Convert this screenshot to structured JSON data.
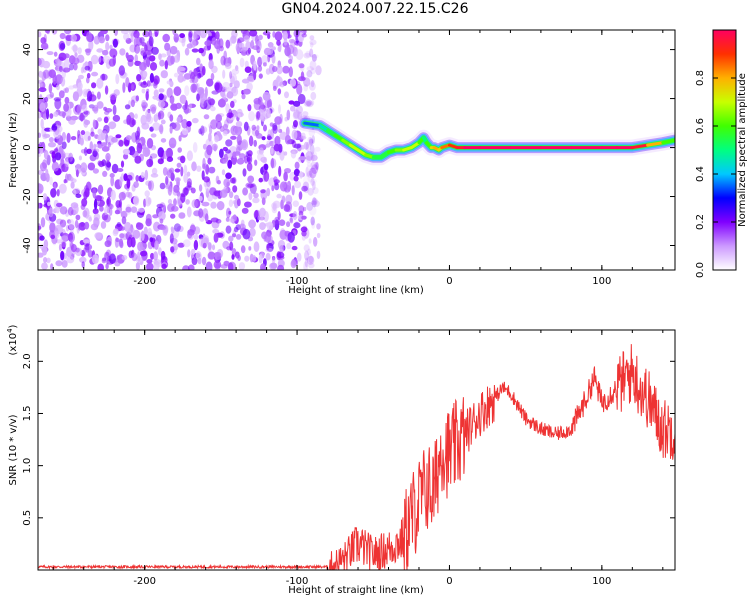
{
  "title": "GN04.2024.007.22.15.C26",
  "chart_data": [
    {
      "type": "heatmap",
      "title": "GN04.2024.007.22.15.C26",
      "xlabel": "Height of straight line (km)",
      "ylabel": "Frequency (Hz)",
      "xlim": [
        -270,
        148
      ],
      "ylim": [
        -50,
        48
      ],
      "x_ticks": [
        -200,
        -100,
        0,
        100
      ],
      "y_ticks": [
        -40,
        -20,
        0,
        20,
        40
      ],
      "x_tick_labels": [
        "-200",
        "-100",
        "0",
        "100"
      ],
      "y_tick_labels": [
        "-40",
        "-20",
        "0",
        "20",
        "40"
      ],
      "colorbar": {
        "label": "Normalized spectral amplitude",
        "range": [
          0.0,
          1.0
        ],
        "ticks": [
          0.0,
          0.2,
          0.4,
          0.6,
          0.8
        ],
        "tick_labels": [
          "0.0",
          "0.2",
          "0.4",
          "0.6",
          "0.8"
        ],
        "colormap": [
          "#ffffff",
          "#cc99ff",
          "#8000ff",
          "#0000ff",
          "#00c8ff",
          "#00ff80",
          "#40ff00",
          "#c8ff00",
          "#ffb000",
          "#ff3000",
          "#ff0060"
        ]
      },
      "noise_region_x": [
        -270,
        -95
      ],
      "ridge_series": {
        "name": "",
        "x": [
          -95,
          -85,
          -80,
          -75,
          -70,
          -65,
          -60,
          -55,
          -50,
          -45,
          -40,
          -35,
          -30,
          -25,
          -20,
          -17,
          -15,
          -12,
          -10,
          -7,
          -5,
          0,
          5,
          10,
          20,
          40,
          60,
          80,
          100,
          110,
          120,
          130,
          140,
          148
        ],
        "y": [
          10,
          9,
          7,
          5,
          3,
          1,
          -1,
          -3,
          -4,
          -4,
          -2,
          -1,
          -1,
          0,
          2,
          4,
          2,
          0,
          0,
          -1,
          0,
          1,
          0,
          0,
          0,
          0,
          0,
          0,
          0,
          0,
          0,
          1,
          2,
          3
        ],
        "amplitude": [
          0.35,
          0.45,
          0.55,
          0.6,
          0.65,
          0.7,
          0.7,
          0.65,
          0.55,
          0.55,
          0.6,
          0.65,
          0.7,
          0.7,
          0.6,
          0.5,
          0.6,
          0.75,
          0.8,
          0.75,
          0.85,
          0.9,
          0.95,
          1.0,
          1.0,
          1.0,
          1.0,
          1.0,
          1.0,
          1.0,
          0.95,
          0.8,
          0.6,
          0.5
        ]
      }
    },
    {
      "type": "line",
      "title": "",
      "xlabel": "Height of straight line (km)",
      "ylabel": "SNR (10 * v/v)",
      "y_scale_note": "(x10",
      "y_scale_exp": "4",
      "y_scale_close": ")",
      "xlim": [
        -270,
        148
      ],
      "ylim": [
        0,
        2.3
      ],
      "x_ticks": [
        -200,
        -100,
        0,
        100
      ],
      "y_ticks": [
        0.5,
        1.0,
        1.5,
        2.0
      ],
      "x_tick_labels": [
        "-200",
        "-100",
        "0",
        "100"
      ],
      "y_tick_labels": [
        "0.5",
        "1.0",
        "1.5",
        "2.0"
      ],
      "color": "#ee3333",
      "series": [
        {
          "name": "",
          "x": [
            -270,
            -200,
            -150,
            -100,
            -80,
            -70,
            -60,
            -50,
            -40,
            -30,
            -25,
            -20,
            -15,
            -10,
            -5,
            0,
            5,
            10,
            20,
            30,
            35,
            40,
            50,
            60,
            70,
            80,
            90,
            95,
            100,
            110,
            120,
            125,
            130,
            135,
            140,
            145,
            148
          ],
          "y": [
            0.03,
            0.03,
            0.03,
            0.03,
            0.03,
            0.1,
            0.25,
            0.15,
            0.2,
            0.3,
            0.5,
            0.65,
            0.8,
            0.75,
            1.2,
            1.1,
            1.2,
            1.3,
            1.5,
            1.65,
            1.75,
            1.7,
            1.45,
            1.35,
            1.3,
            1.35,
            1.65,
            1.85,
            1.6,
            1.75,
            1.9,
            1.75,
            1.65,
            1.5,
            1.35,
            1.35,
            1.35
          ]
        }
      ]
    }
  ]
}
